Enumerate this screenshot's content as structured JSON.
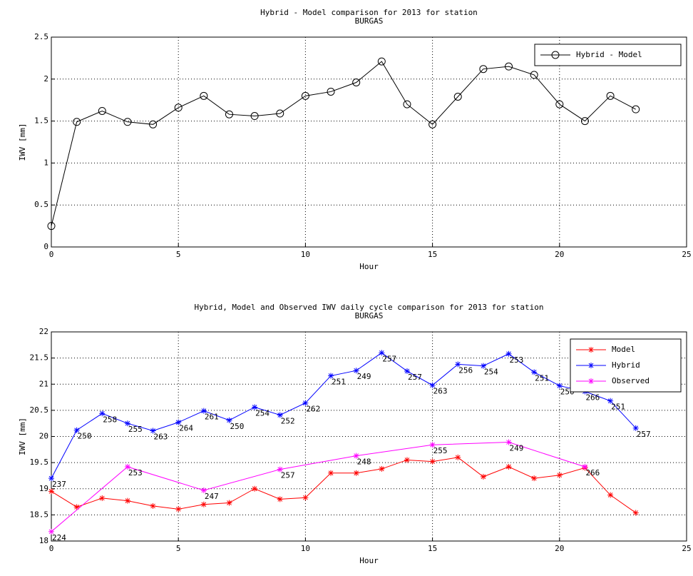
{
  "chart_data": [
    {
      "type": "line",
      "title": [
        "Hybrid - Model comparison for 2013 for station",
        "BURGAS"
      ],
      "xlabel": "Hour",
      "ylabel": "IWV [mm]",
      "xlim": [
        0,
        25
      ],
      "xticks": [
        0,
        5,
        10,
        15,
        20,
        25
      ],
      "ylim": [
        0,
        2.5
      ],
      "yticks": [
        0,
        0.5,
        1,
        1.5,
        2,
        2.5
      ],
      "grid": true,
      "legend": "northeast",
      "series": [
        {
          "name": "Hybrid - Model",
          "color": "#000000",
          "marker": "circle",
          "x": [
            0,
            1,
            2,
            3,
            4,
            5,
            6,
            7,
            8,
            9,
            10,
            11,
            12,
            13,
            14,
            15,
            16,
            17,
            18,
            19,
            20,
            21,
            22,
            23
          ],
          "values": [
            0.25,
            1.49,
            1.62,
            1.49,
            1.46,
            1.66,
            1.8,
            1.58,
            1.56,
            1.59,
            1.8,
            1.85,
            1.96,
            2.21,
            1.7,
            1.46,
            1.79,
            2.12,
            2.15,
            2.05,
            1.7,
            1.5,
            1.8,
            1.64
          ]
        }
      ]
    },
    {
      "type": "line",
      "title": [
        "Hybrid, Model and Observed IWV daily cycle comparison for 2013 for station",
        "BURGAS"
      ],
      "xlabel": "Hour",
      "ylabel": "IWV [mm]",
      "xlim": [
        0,
        25
      ],
      "xticks": [
        0,
        5,
        10,
        15,
        20,
        25
      ],
      "ylim": [
        18,
        22
      ],
      "yticks": [
        18,
        18.5,
        19,
        19.5,
        20,
        20.5,
        21,
        21.5,
        22
      ],
      "grid": true,
      "legend": "northeast",
      "series": [
        {
          "name": "Model",
          "color": "#ff0000",
          "marker": "asterisk",
          "x": [
            0,
            1,
            2,
            3,
            4,
            5,
            6,
            7,
            8,
            9,
            10,
            11,
            12,
            13,
            14,
            15,
            16,
            17,
            18,
            19,
            20,
            21,
            22,
            23
          ],
          "values": [
            18.95,
            18.65,
            18.82,
            18.77,
            18.67,
            18.61,
            18.7,
            18.73,
            19.0,
            18.8,
            18.83,
            19.3,
            19.3,
            19.38,
            19.55,
            19.52,
            19.6,
            19.23,
            19.42,
            19.2,
            19.26,
            19.4,
            18.88,
            18.54
          ]
        },
        {
          "name": "Hybrid",
          "color": "#0000ff",
          "marker": "asterisk",
          "x": [
            0,
            1,
            2,
            3,
            4,
            5,
            6,
            7,
            8,
            9,
            10,
            11,
            12,
            13,
            14,
            15,
            16,
            17,
            18,
            19,
            20,
            21,
            22,
            23
          ],
          "values": [
            19.2,
            20.12,
            20.44,
            20.25,
            20.11,
            20.27,
            20.49,
            20.31,
            20.56,
            20.41,
            20.64,
            21.16,
            21.26,
            21.6,
            21.25,
            20.98,
            21.38,
            21.35,
            21.58,
            21.23,
            20.97,
            20.86,
            20.68,
            20.16
          ],
          "annotations": [
            "237",
            "250",
            "258",
            "255",
            "263",
            "264",
            "261",
            "250",
            "254",
            "252",
            "262",
            "251",
            "249",
            "257",
            "257",
            "263",
            "256",
            "254",
            "253",
            "251",
            "250",
            "266",
            "251",
            "257"
          ]
        },
        {
          "name": "Observed",
          "color": "#ff00ff",
          "marker": "asterisk",
          "x": [
            0,
            3,
            6,
            9,
            12,
            15,
            18,
            21
          ],
          "values": [
            18.18,
            19.42,
            18.97,
            19.37,
            19.63,
            19.84,
            19.89,
            19.42
          ],
          "annotations": [
            "224",
            "253",
            "247",
            "257",
            "248",
            "255",
            "249",
            "266"
          ]
        }
      ]
    }
  ]
}
